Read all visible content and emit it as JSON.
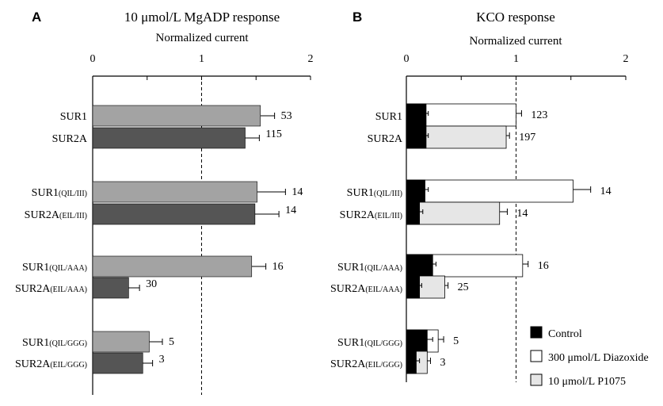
{
  "panels": [
    {
      "letter": "A",
      "title": "10 μmol/L MgADP response",
      "axis_label": "Normalized current"
    },
    {
      "letter": "B",
      "title": "KCO response",
      "axis_label": "Normalized current"
    }
  ],
  "chart_data": [
    {
      "type": "bar",
      "orientation": "horizontal",
      "title": "10 μmol/L MgADP response",
      "xlabel": "Normalized current",
      "xlim": [
        0,
        2
      ],
      "ticks": [
        "0",
        "1",
        "2"
      ],
      "reference_line": 1,
      "colors": {
        "SUR1": "#a3a3a3",
        "SUR2A": "#555555"
      },
      "categories": [
        {
          "main": "SUR1",
          "sub": ""
        },
        {
          "main": "SUR2A",
          "sub": ""
        },
        {
          "main": "SUR1",
          "sub": "(QIL/III)"
        },
        {
          "main": "SUR2A",
          "sub": "(EIL/III)"
        },
        {
          "main": "SUR1",
          "sub": "(QIL/AAA)"
        },
        {
          "main": "SUR2A",
          "sub": "(EIL/AAA)"
        },
        {
          "main": "SUR1",
          "sub": "(QIL/GGG)"
        },
        {
          "main": "SUR2A",
          "sub": "(EIL/GGG)"
        }
      ],
      "values": [
        1.54,
        1.4,
        1.51,
        1.49,
        1.46,
        0.33,
        0.52,
        0.46
      ],
      "errors": [
        0.13,
        0.13,
        0.26,
        0.22,
        0.13,
        0.1,
        0.12,
        0.09
      ],
      "n": [
        "53",
        "115",
        "14",
        "14",
        "16",
        "30",
        "5",
        "3"
      ]
    },
    {
      "type": "bar",
      "orientation": "horizontal",
      "title": "KCO response",
      "xlabel": "Normalized current",
      "xlim": [
        0,
        2
      ],
      "ticks": [
        "0",
        "1",
        "2"
      ],
      "reference_line": 1,
      "categories": [
        {
          "main": "SUR1",
          "sub": ""
        },
        {
          "main": "SUR2A",
          "sub": ""
        },
        {
          "main": "SUR1",
          "sub": "(QIL/III)"
        },
        {
          "main": "SUR2A",
          "sub": "(EIL/III)"
        },
        {
          "main": "SUR1",
          "sub": "(QIL/AAA)"
        },
        {
          "main": "SUR2A",
          "sub": "(EIL/AAA)"
        },
        {
          "main": "SUR1",
          "sub": "(QIL/GGG)"
        },
        {
          "main": "SUR2A",
          "sub": "(EIL/GGG)"
        }
      ],
      "control": [
        0.18,
        0.18,
        0.17,
        0.12,
        0.24,
        0.12,
        0.19,
        0.09
      ],
      "control_errors": [
        0.02,
        0.02,
        0.03,
        0.03,
        0.03,
        0.02,
        0.05,
        0.03
      ],
      "kco": [
        1.0,
        0.91,
        1.52,
        0.85,
        1.06,
        0.35,
        0.29,
        0.19
      ],
      "kco_errors": [
        0.05,
        0.03,
        0.16,
        0.07,
        0.05,
        0.03,
        0.05,
        0.03
      ],
      "kco_type": [
        "diazoxide",
        "p1075",
        "diazoxide",
        "p1075",
        "diazoxide",
        "p1075",
        "diazoxide",
        "p1075"
      ],
      "n": [
        "123",
        "197",
        "14",
        "14",
        "16",
        "25",
        "5",
        "3"
      ],
      "legend": {
        "position": "bottom-right",
        "entries": [
          {
            "key": "control",
            "label": "Control",
            "color": "#000000"
          },
          {
            "key": "diazoxide",
            "label": "300 μmol/L Diazoxide",
            "color": "#ffffff"
          },
          {
            "key": "p1075",
            "label": "10 μmol/L P1075",
            "color": "#e6e6e6"
          }
        ]
      }
    }
  ]
}
